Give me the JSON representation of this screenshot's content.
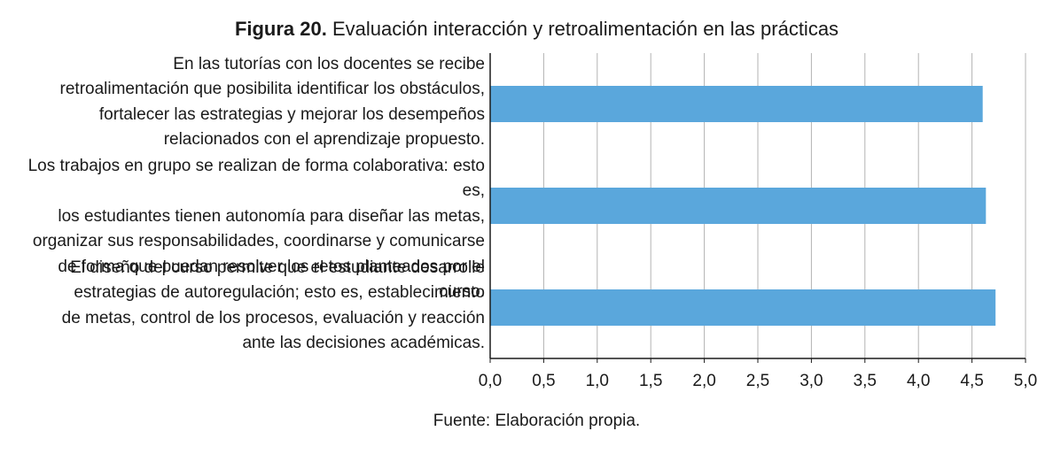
{
  "figure": {
    "title_prefix": "Figura 20.",
    "title_text": "Evaluación interacción y retroalimentación en las prácticas",
    "source": "Fuente: Elaboración propia."
  },
  "chart_data": {
    "type": "bar",
    "orientation": "horizontal",
    "title": "Figura 20. Evaluación interacción y retroalimentación en las prácticas",
    "categories": [
      "En las tutorías con los docentes se recibe retroalimentación que posibilita identificar los obstáculos, fortalecer las estrategias y mejorar los desempeños relacionados con el aprendizaje propuesto.",
      "Los trabajos en grupo se realizan de forma colaborativa: esto es, los estudiantes tienen autonomía para diseñar las metas, organizar sus responsabilidades, coordinarse y comunicarse de forma que puedan resolver los retos planteados por el curso.",
      "El diseño del curso permite que el estudiante desarrolle estrategias de autoregulación; esto es, establecimiento de metas, control de los procesos, evaluación y reacción ante las decisiones académicas."
    ],
    "category_lines": [
      [
        "En las tutorías con los docentes se recibe",
        "retroalimentación que posibilita identificar los obstáculos,",
        "fortalecer las estrategias y mejorar los desempeños",
        "relacionados con el aprendizaje propuesto."
      ],
      [
        "Los trabajos en grupo se realizan de forma colaborativa: esto es,",
        "los estudiantes tienen autonomía para diseñar las metas,",
        "organizar sus responsabilidades, coordinarse y comunicarse",
        "de forma que puedan resolver los retos planteados por el curso."
      ],
      [
        "El diseño del curso permite que el estudiante desarrolle",
        "estrategias de autoregulación; esto es, establecimiento",
        "de metas, control de los procesos, evaluación y reacción",
        "ante las decisiones académicas."
      ]
    ],
    "values": [
      4.6,
      4.63,
      4.72
    ],
    "xlim": [
      0,
      5
    ],
    "xticks": [
      "0,0",
      "0,5",
      "1,0",
      "1,5",
      "2,0",
      "2,5",
      "3,0",
      "3,5",
      "4,0",
      "4,5",
      "5,0"
    ],
    "xlabel": "",
    "ylabel": "",
    "grid": true,
    "legend": "none",
    "bar_color": "#5aa7dc",
    "grid_color": "#b3b3b3"
  }
}
